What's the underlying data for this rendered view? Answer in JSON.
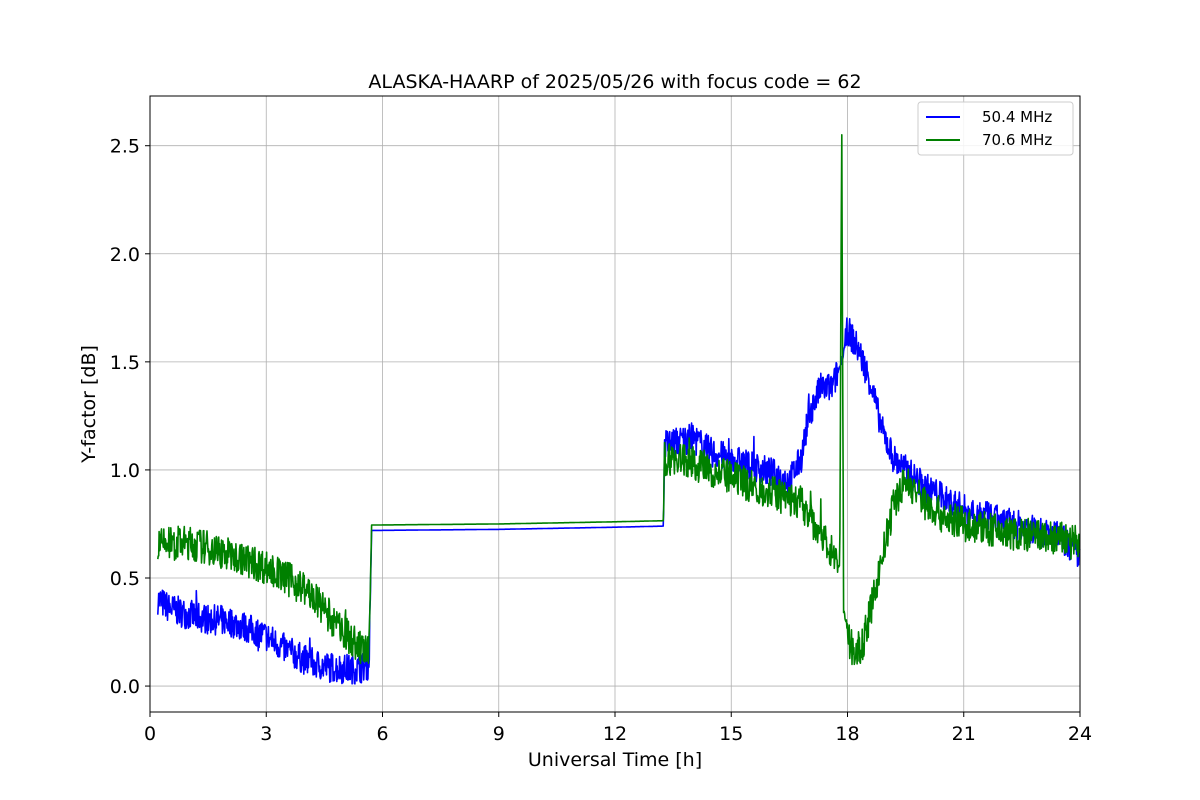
{
  "chart_data": {
    "type": "line",
    "title": "ALASKA-HAARP of 2025/05/26 with focus code = 62",
    "xlabel": "Universal Time [h]",
    "ylabel": "Y-factor [dB]",
    "xlim": [
      0,
      24
    ],
    "ylim": [
      -0.12,
      2.73
    ],
    "xticks": [
      0,
      3,
      6,
      9,
      12,
      15,
      18,
      21,
      24
    ],
    "yticks": [
      0.0,
      0.5,
      1.0,
      1.5,
      2.0,
      2.5
    ],
    "ytick_labels": [
      "0.0",
      "0.5",
      "1.0",
      "1.5",
      "2.0",
      "2.5"
    ],
    "grid": true,
    "legend_position": "top-right",
    "series": [
      {
        "name": "50.4 MHz",
        "color": "#0000ff",
        "x": [
          0.2,
          0.5,
          1.0,
          1.5,
          2.0,
          2.5,
          3.0,
          3.5,
          4.0,
          4.5,
          5.0,
          5.4,
          5.65,
          5.72,
          9.0,
          12.0,
          13.25,
          13.28,
          13.6,
          14.0,
          14.5,
          15.0,
          15.5,
          16.0,
          16.5,
          16.8,
          17.0,
          17.3,
          17.6,
          17.85,
          18.0,
          18.3,
          18.6,
          18.9,
          19.2,
          19.5,
          20.0,
          20.5,
          21.0,
          21.5,
          22.0,
          22.5,
          23.0,
          23.5,
          24.0
        ],
        "y": [
          0.4,
          0.36,
          0.33,
          0.31,
          0.3,
          0.27,
          0.23,
          0.17,
          0.12,
          0.09,
          0.08,
          0.08,
          0.1,
          0.72,
          0.725,
          0.735,
          0.74,
          1.12,
          1.13,
          1.15,
          1.08,
          1.05,
          1.02,
          0.99,
          0.95,
          1.05,
          1.25,
          1.38,
          1.38,
          1.5,
          1.65,
          1.55,
          1.4,
          1.18,
          1.05,
          1.0,
          0.92,
          0.87,
          0.82,
          0.79,
          0.76,
          0.74,
          0.71,
          0.69,
          0.6
        ],
        "noise_amplitude": 0.07
      },
      {
        "name": "70.6 MHz",
        "color": "#008000",
        "x": [
          0.2,
          0.5,
          1.0,
          1.5,
          2.0,
          2.5,
          3.0,
          3.5,
          4.0,
          4.5,
          5.0,
          5.4,
          5.65,
          5.72,
          9.0,
          12.0,
          13.25,
          13.28,
          13.6,
          14.0,
          14.5,
          15.0,
          15.5,
          16.0,
          16.5,
          16.8,
          17.0,
          17.3,
          17.6,
          17.8,
          17.85,
          17.9,
          18.0,
          18.2,
          18.4,
          18.6,
          18.9,
          19.2,
          19.5,
          20.0,
          20.5,
          21.0,
          21.5,
          22.0,
          22.5,
          23.0,
          23.5,
          24.0
        ],
        "y": [
          0.65,
          0.66,
          0.66,
          0.64,
          0.61,
          0.58,
          0.55,
          0.5,
          0.45,
          0.35,
          0.25,
          0.18,
          0.15,
          0.745,
          0.75,
          0.76,
          0.765,
          1.05,
          1.05,
          1.03,
          1.0,
          0.96,
          0.93,
          0.9,
          0.86,
          0.85,
          0.78,
          0.72,
          0.62,
          0.55,
          2.6,
          0.35,
          0.22,
          0.15,
          0.2,
          0.35,
          0.6,
          0.85,
          0.95,
          0.85,
          0.78,
          0.75,
          0.73,
          0.71,
          0.7,
          0.69,
          0.68,
          0.67
        ],
        "noise_amplitude": 0.08
      }
    ]
  }
}
